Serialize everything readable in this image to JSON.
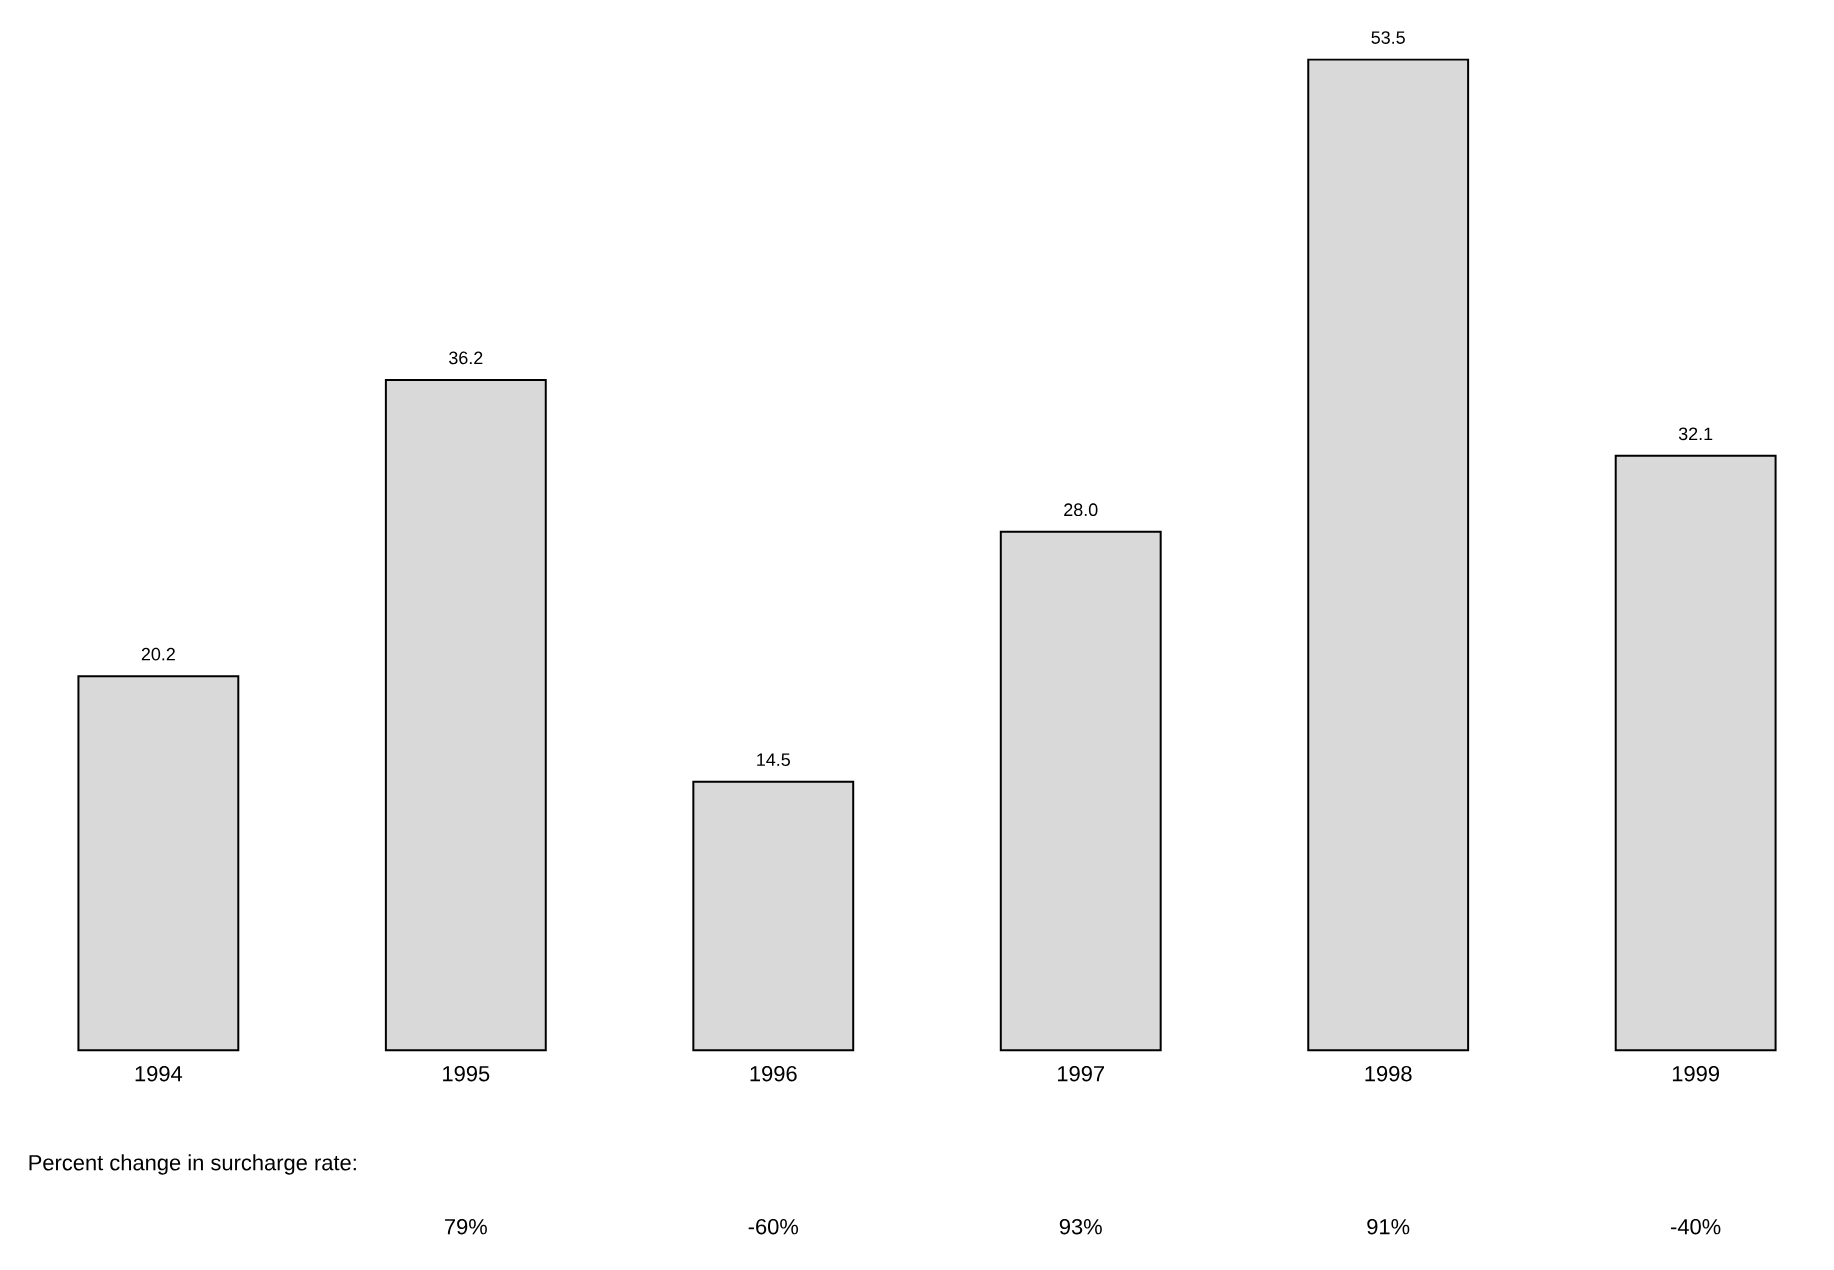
{
  "chart_data": {
    "type": "bar",
    "categories": [
      "1994",
      "1995",
      "1996",
      "1997",
      "1998",
      "1999"
    ],
    "values": [
      20.2,
      36.2,
      14.5,
      28.0,
      53.5,
      32.1
    ],
    "value_labels": [
      "20.2",
      "36.2",
      "14.5",
      "28.0",
      "53.5",
      "32.1"
    ],
    "color": "#d9d9d9",
    "annotations": [
      "Percent change in surcharge rate:",
      "79%",
      "-60%",
      "93%",
      "91%",
      "-40%"
    ]
  }
}
